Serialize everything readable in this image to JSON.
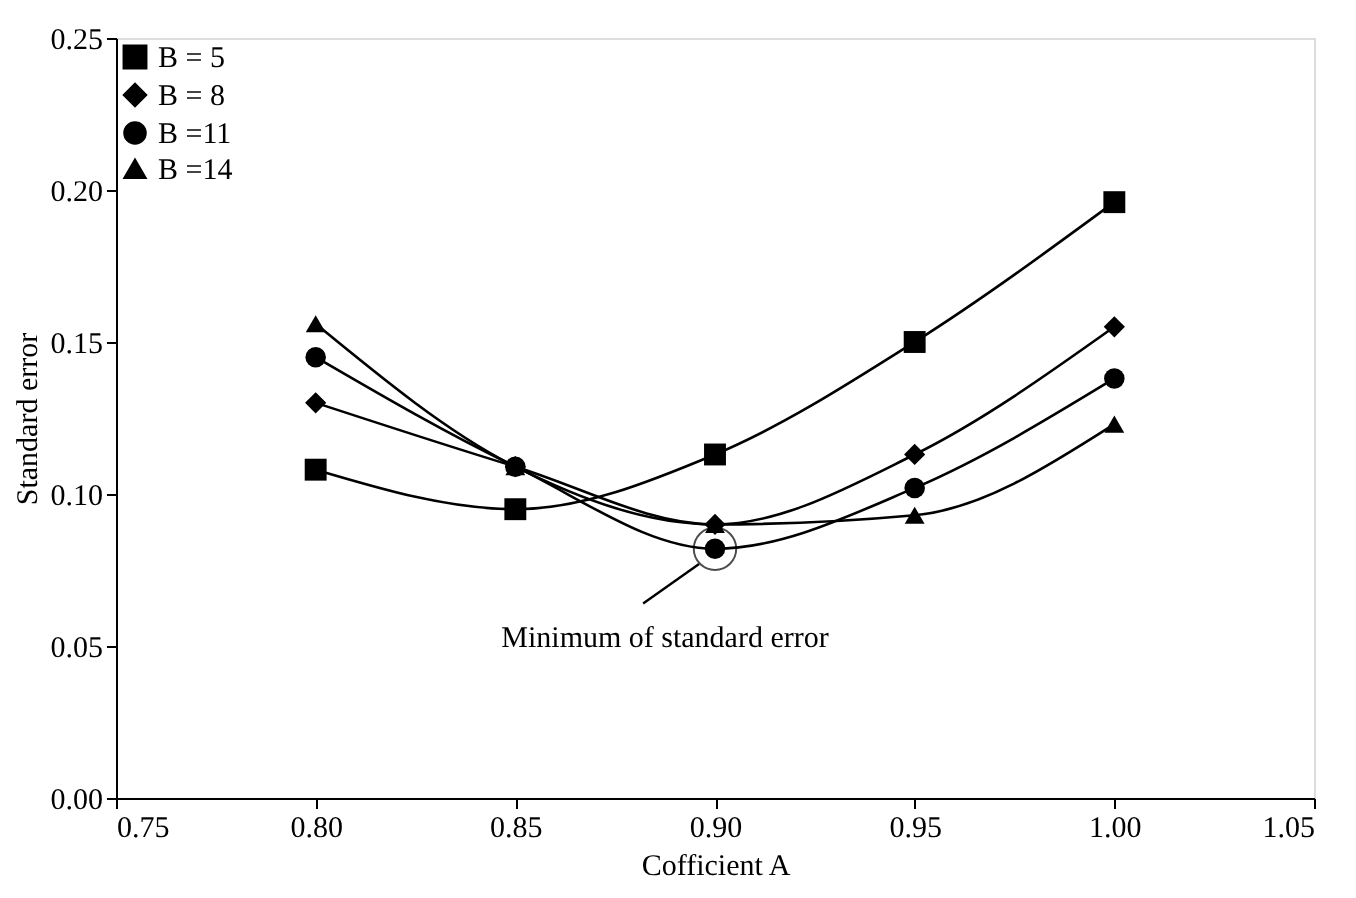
{
  "chart_data": {
    "type": "line",
    "xlabel": "Cofficient A",
    "ylabel": "Standard error",
    "x": [
      0.8,
      0.85,
      0.9,
      0.95,
      1.0
    ],
    "series": [
      {
        "name": "B = 5",
        "color": "#000000",
        "marker": "square",
        "values": [
          0.108,
          0.095,
          0.113,
          0.15,
          0.196
        ]
      },
      {
        "name": "B = 8",
        "color": "#000000",
        "marker": "diamond",
        "values": [
          0.13,
          0.109,
          0.09,
          0.113,
          0.155
        ]
      },
      {
        "name": "B =11",
        "color": "#000000",
        "marker": "circle",
        "values": [
          0.145,
          0.109,
          0.082,
          0.102,
          0.138
        ]
      },
      {
        "name": "B =14",
        "color": "#000000",
        "marker": "triangle",
        "values": [
          0.156,
          0.109,
          0.09,
          0.093,
          0.123
        ]
      }
    ],
    "xlim": [
      0.75,
      1.05
    ],
    "xticks": [
      {
        "value": 0.75,
        "label": "0.75"
      },
      {
        "value": 0.8,
        "label": "0.80"
      },
      {
        "value": 0.85,
        "label": "0.85"
      },
      {
        "value": 0.9,
        "label": "0.90"
      },
      {
        "value": 0.95,
        "label": "0.95"
      },
      {
        "value": 1.0,
        "label": "1.00"
      },
      {
        "value": 1.05,
        "label": "1.05"
      }
    ],
    "ylim": [
      0,
      0.25
    ],
    "yticks": [
      {
        "value": 0,
        "label": "0.00"
      },
      {
        "value": 0.05,
        "label": "0.05"
      },
      {
        "value": 0.1,
        "label": "0.10"
      },
      {
        "value": 0.15,
        "label": "0.15"
      },
      {
        "value": 0.2,
        "label": "0.20"
      },
      {
        "value": 0.25,
        "label": "0.25"
      }
    ],
    "annotations": [
      {
        "text": "Minimum of standard error",
        "x": 0.9,
        "y": 0.082
      }
    ],
    "legend": "top left",
    "grid": false,
    "line_style": "solid"
  }
}
